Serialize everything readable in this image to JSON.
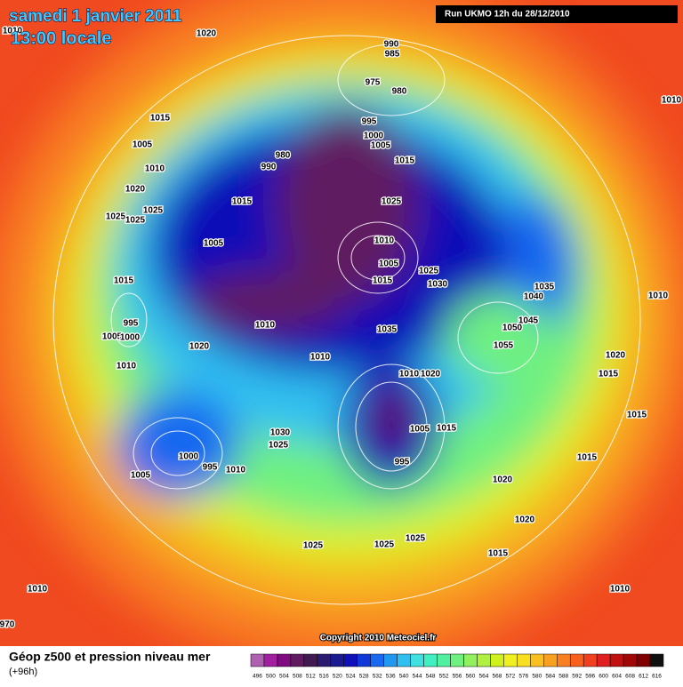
{
  "header": {
    "date": "samedi 1 janvier 2011",
    "time": "13:00 locale",
    "run": "Run UKMO 12h du 28/12/2010"
  },
  "pressure_labels": [
    1010,
    1020,
    990,
    985,
    975,
    980,
    1015,
    1005,
    1010,
    980,
    990,
    995,
    1000,
    1005,
    1015,
    1020,
    1025,
    1025,
    1025,
    1015,
    1025,
    1005,
    1010,
    1005,
    1025,
    1015,
    1030,
    1015,
    1035,
    1040,
    995,
    1010,
    1050,
    1045,
    1035,
    1005,
    1000,
    1055,
    1020,
    1010,
    1010,
    1020,
    1015,
    1010,
    1020,
    1010,
    1010,
    1015,
    1030,
    1025,
    1005,
    1015,
    1000,
    995,
    1010,
    1005,
    995,
    1015,
    1020,
    1020,
    1025,
    1025,
    1025,
    1015,
    1010,
    1010,
    970
  ],
  "footer": {
    "title": "Géop z500 et pression niveau mer",
    "subtitle": "(+96h)",
    "copyright": "Copyright 2010 Meteociel.fr"
  },
  "legend": {
    "values": [
      496,
      500,
      504,
      508,
      512,
      516,
      520,
      524,
      528,
      532,
      536,
      540,
      544,
      548,
      552,
      556,
      560,
      564,
      568,
      572,
      576,
      580,
      584,
      588,
      592,
      596,
      600,
      604,
      608,
      612,
      616
    ],
    "colors": [
      "#b060b0",
      "#a020a0",
      "#800a80",
      "#601a60",
      "#401a50",
      "#2a1a70",
      "#1a1a90",
      "#1010b8",
      "#1038d8",
      "#1868f0",
      "#2098f0",
      "#30c0f0",
      "#40e0e0",
      "#40f0c0",
      "#50f0a0",
      "#70f080",
      "#90f060",
      "#b0f040",
      "#d0f020",
      "#f0f020",
      "#f8e020",
      "#f8c020",
      "#f8a020",
      "#f88020",
      "#f86020",
      "#f04020",
      "#e02020",
      "#c01010",
      "#a00808",
      "#800000",
      "#101010"
    ]
  }
}
